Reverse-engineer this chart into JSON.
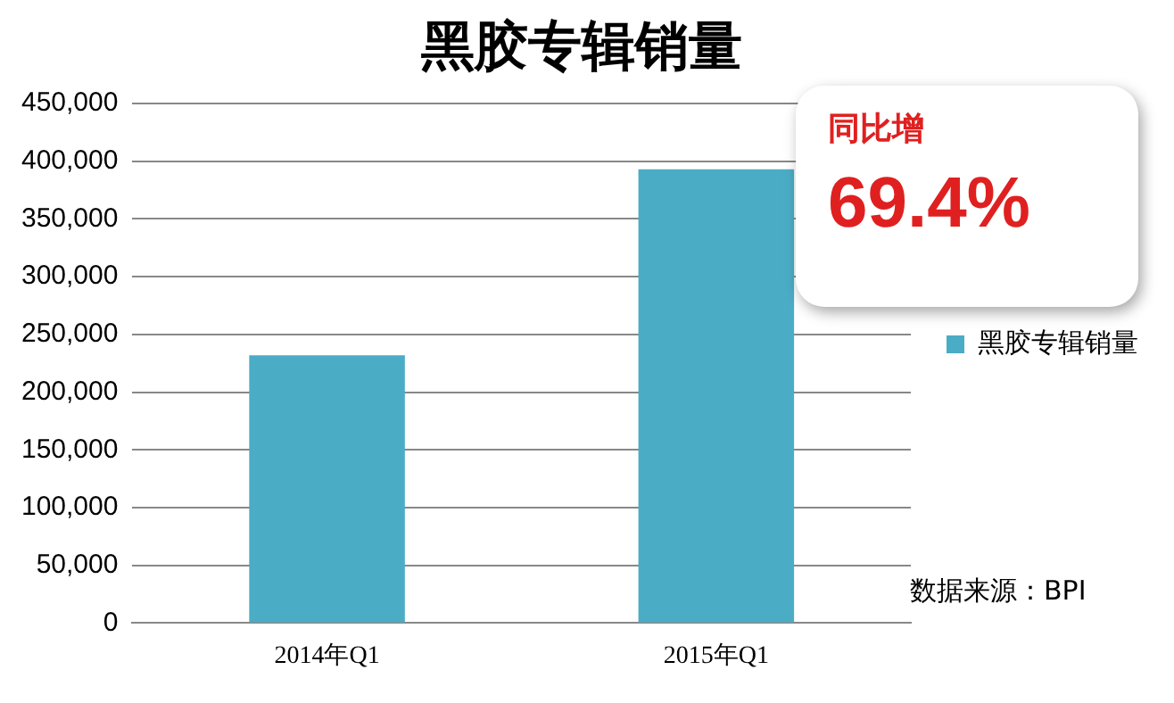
{
  "chart_data": {
    "type": "bar",
    "title": "黑胶专辑销量",
    "categories": [
      "2014年Q1",
      "2015年Q1"
    ],
    "series": [
      {
        "name": "黑胶专辑销量",
        "color": "#4bacc6",
        "values": [
          232000,
          393000
        ]
      }
    ],
    "ylim": [
      0,
      450000
    ],
    "yticks": [
      0,
      {
        "value": 50000,
        "label": "50,000"
      },
      {
        "value": 100000,
        "label": "100,000"
      },
      {
        "value": 150000,
        "label": "150,000"
      },
      {
        "value": 200000,
        "label": "200,000"
      },
      {
        "value": 250000,
        "label": "250,000"
      },
      {
        "value": 300000,
        "label": "300,000"
      },
      {
        "value": 350000,
        "label": "350,000"
      },
      {
        "value": 400000,
        "label": "400,000"
      },
      {
        "value": 450000,
        "label": "450,000"
      }
    ],
    "grid": "y",
    "legend": "right",
    "annotations": [
      "同比增",
      "69.4%",
      "数据来源：BPI"
    ]
  }
}
